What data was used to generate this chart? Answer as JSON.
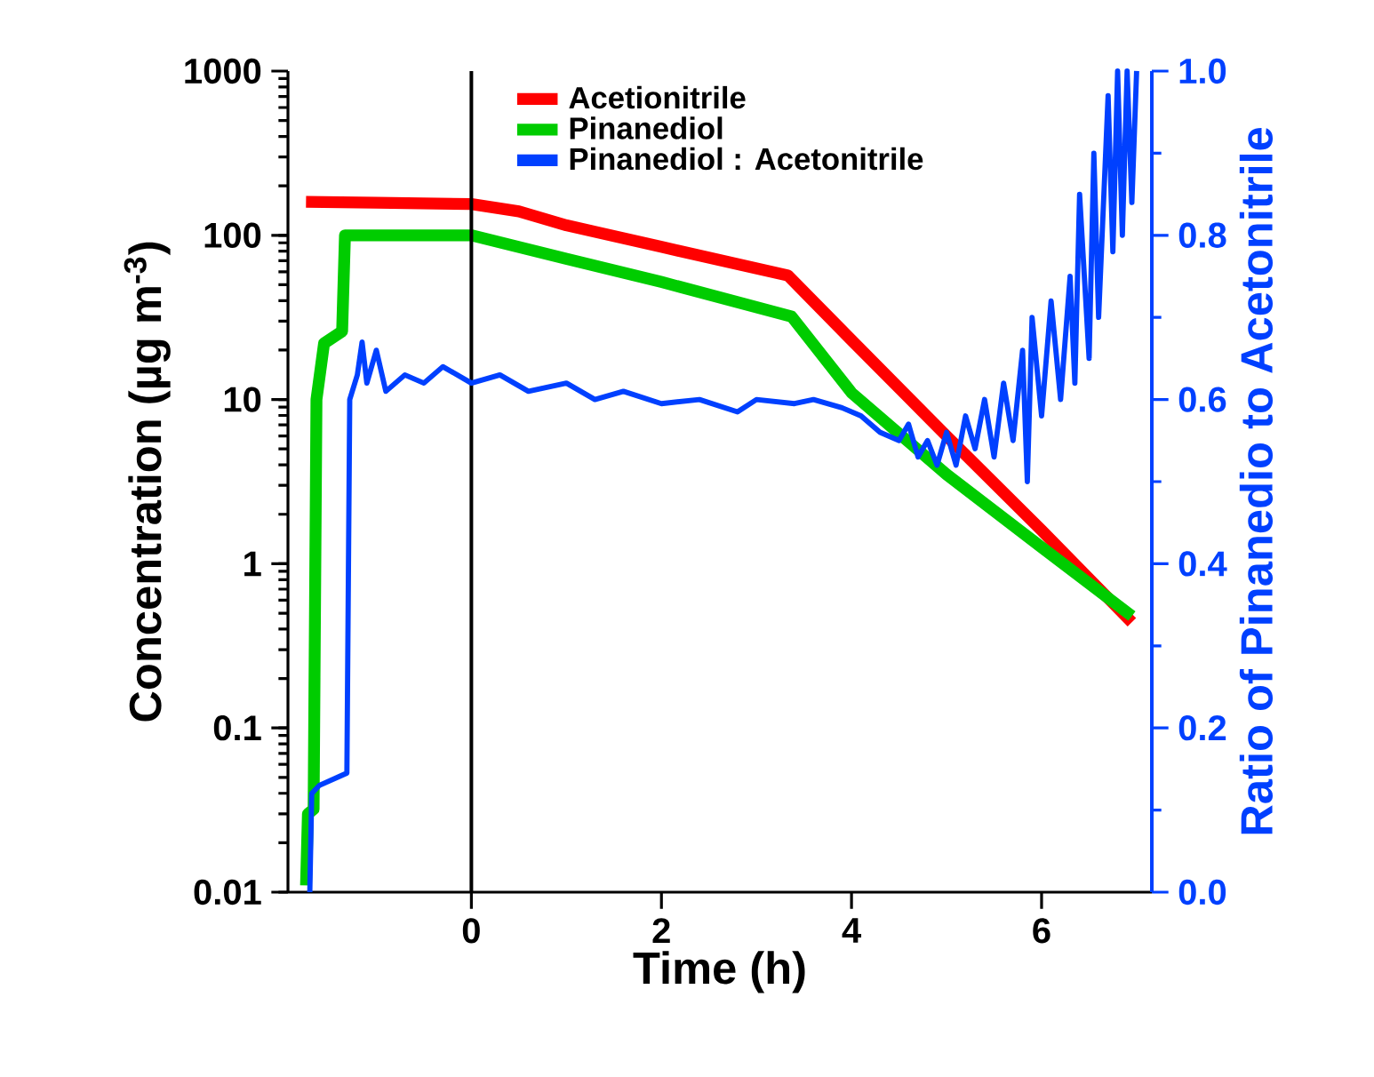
{
  "chart_data": {
    "type": "line",
    "xlabel": "Time (h)",
    "ylabel": "Concentration (µg m$^{-3}$)",
    "y2label": "Ratio of Pinanedio to Acetonitrile",
    "xlim": [
      -1.93,
      7.16
    ],
    "xticks": [
      0,
      2,
      4,
      6
    ],
    "ylim": [
      0.01,
      1000
    ],
    "yticks": [
      0.01,
      0.1,
      1,
      10,
      100,
      1000
    ],
    "log": "y",
    "y2lim": [
      0,
      1
    ],
    "y2ticks": [
      {
        "value": 0,
        "label": "0.0"
      },
      {
        "value": 0.2,
        "label": "0.2"
      },
      {
        "value": 0.4,
        "label": "0.4"
      },
      {
        "value": 0.6,
        "label": "0.6"
      },
      {
        "value": 0.8,
        "label": "0.8"
      },
      {
        "value": 1,
        "label": "1.0"
      }
    ],
    "grid": false,
    "legend": "top",
    "marker": "none",
    "line_style": "solid",
    "ref_lines": [
      {
        "axis": "x",
        "value": 0,
        "color": "#000000"
      }
    ],
    "series": [
      {
        "name": "Acetionitrile",
        "color": "#ff0000",
        "x": [
          -1.74,
          -1.0,
          0,
          0.5,
          1,
          2,
          3.33,
          4,
          5,
          6,
          6.95
        ],
        "values": [
          160,
          158,
          155,
          140,
          115,
          85,
          57,
          23,
          6.0,
          1.6,
          0.44
        ]
      },
      {
        "name": "Pinanediol",
        "color": "#00cc00",
        "x": [
          -1.74,
          -1.72,
          -1.66,
          -1.63,
          -1.55,
          -1.36,
          -1.33,
          -1.2,
          0,
          1,
          2,
          3.37,
          4,
          5,
          6,
          6.95
        ],
        "values": [
          0.011,
          0.03,
          0.032,
          10,
          22,
          26,
          100,
          100,
          100,
          72,
          52,
          32,
          11,
          3.5,
          1.26,
          0.48
        ]
      },
      {
        "name": "Pinanediol : Acetonitrile",
        "color": "#0040ff",
        "axis": "y2",
        "x": [
          -1.7,
          -1.68,
          -1.6,
          -1.31,
          -1.28,
          -1.2,
          -1.15,
          -1.1,
          -1.0,
          -0.9,
          -0.7,
          -0.5,
          -0.3,
          0,
          0.3,
          0.6,
          1.0,
          1.3,
          1.6,
          2,
          2.4,
          2.8,
          3.0,
          3.4,
          3.6,
          3.9,
          4.1,
          4.3,
          4.5,
          4.6,
          4.7,
          4.8,
          4.9,
          5.0,
          5.1,
          5.2,
          5.3,
          5.4,
          5.5,
          5.6,
          5.7,
          5.8,
          5.85,
          5.9,
          6.0,
          6.1,
          6.2,
          6.3,
          6.35,
          6.4,
          6.5,
          6.55,
          6.6,
          6.7,
          6.75,
          6.8,
          6.85,
          6.9,
          6.95,
          7.0
        ],
        "values": [
          0,
          0.12,
          0.13,
          0.145,
          0.6,
          0.63,
          0.67,
          0.62,
          0.66,
          0.61,
          0.63,
          0.62,
          0.64,
          0.62,
          0.63,
          0.61,
          0.62,
          0.6,
          0.61,
          0.595,
          0.6,
          0.585,
          0.6,
          0.595,
          0.6,
          0.59,
          0.58,
          0.56,
          0.55,
          0.57,
          0.53,
          0.55,
          0.52,
          0.56,
          0.52,
          0.58,
          0.54,
          0.6,
          0.53,
          0.62,
          0.55,
          0.66,
          0.5,
          0.7,
          0.58,
          0.72,
          0.6,
          0.75,
          0.62,
          0.85,
          0.65,
          0.9,
          0.7,
          0.97,
          0.78,
          1.0,
          0.8,
          1.0,
          0.84,
          1.0
        ]
      }
    ]
  }
}
